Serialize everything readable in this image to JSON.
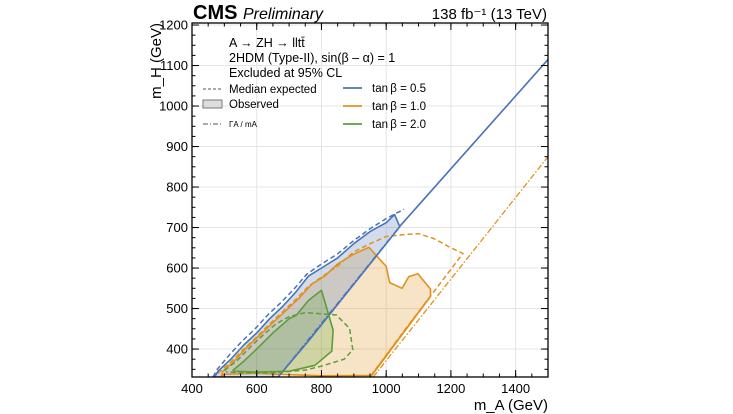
{
  "header": {
    "experiment": "CMS",
    "status": "Preliminary",
    "lumi": "138 fb⁻¹ (13 TeV)"
  },
  "annotations": [
    "A → ZH → lltt̄",
    "2HDM (Type-II), sin(β – α) = 1",
    "Excluded at 95% CL"
  ],
  "legend": {
    "styles": [
      {
        "label": "Median expected",
        "kind": "dashed"
      },
      {
        "label": "Observed",
        "kind": "filled"
      },
      {
        "label": "ΓA / mA",
        "kind": "dashdot"
      }
    ],
    "series": [
      {
        "label": "tan β = 0.5",
        "color": "#4a74b8"
      },
      {
        "label": "tan β = 1.0",
        "color": "#e0921e"
      },
      {
        "label": "tan β = 2.0",
        "color": "#5c9e3c"
      }
    ]
  },
  "chart_data": {
    "type": "line",
    "xlabel": "m_A (GeV)",
    "ylabel": "m_H (GeV)",
    "xlim": [
      400,
      1500
    ],
    "ylim": [
      331,
      1205
    ],
    "xticks": [
      400,
      600,
      800,
      1000,
      1200,
      1400
    ],
    "yticks": [
      400,
      500,
      600,
      700,
      800,
      900,
      1000,
      1100,
      1200
    ],
    "grid": true,
    "legend_placement": "top-left",
    "series": [
      {
        "name": "tan β = 0.5",
        "color": "#4a74b8",
        "observed": [
          [
            470,
            331
          ],
          [
            480,
            345
          ],
          [
            520,
            375
          ],
          [
            560,
            410
          ],
          [
            600,
            440
          ],
          [
            640,
            475
          ],
          [
            680,
            505
          ],
          [
            720,
            540
          ],
          [
            760,
            580
          ],
          [
            800,
            600
          ],
          [
            850,
            625
          ],
          [
            900,
            660
          ],
          [
            950,
            690
          ],
          [
            1000,
            712
          ],
          [
            1026,
            732
          ],
          [
            1042,
            702
          ],
          [
            945,
            605
          ],
          [
            850,
            510
          ],
          [
            760,
            420
          ],
          [
            666,
            331
          ]
        ],
        "expected": [
          [
            465,
            331
          ],
          [
            478,
            350
          ],
          [
            515,
            385
          ],
          [
            555,
            420
          ],
          [
            595,
            450
          ],
          [
            635,
            485
          ],
          [
            675,
            515
          ],
          [
            715,
            548
          ],
          [
            755,
            585
          ],
          [
            800,
            610
          ],
          [
            850,
            635
          ],
          [
            900,
            668
          ],
          [
            950,
            697
          ],
          [
            1000,
            722
          ],
          [
            1030,
            735
          ],
          [
            1055,
            745
          ]
        ],
        "width_line": [
          [
            666,
            331
          ],
          [
            1042,
            703
          ],
          [
            1500,
            1115
          ]
        ]
      },
      {
        "name": "tan β = 1.0",
        "color": "#e0921e",
        "observed": [
          [
            490,
            331
          ],
          [
            495,
            345
          ],
          [
            530,
            370
          ],
          [
            570,
            405
          ],
          [
            610,
            435
          ],
          [
            650,
            465
          ],
          [
            690,
            495
          ],
          [
            730,
            525
          ],
          [
            770,
            560
          ],
          [
            810,
            580
          ],
          [
            850,
            610
          ],
          [
            897,
            633
          ],
          [
            915,
            640
          ],
          [
            947,
            651
          ],
          [
            1000,
            604
          ],
          [
            1011,
            564
          ],
          [
            1049,
            550
          ],
          [
            1070,
            579
          ],
          [
            1098,
            586
          ],
          [
            1137,
            548
          ],
          [
            1137,
            530
          ],
          [
            954,
            335
          ],
          [
            800,
            334
          ],
          [
            600,
            340
          ],
          [
            500,
            338
          ]
        ],
        "expected": [
          [
            480,
            340
          ],
          [
            520,
            368
          ],
          [
            560,
            400
          ],
          [
            600,
            430
          ],
          [
            640,
            462
          ],
          [
            680,
            492
          ],
          [
            720,
            522
          ],
          [
            760,
            555
          ],
          [
            800,
            578
          ],
          [
            850,
            605
          ],
          [
            900,
            640
          ],
          [
            950,
            660
          ],
          [
            1000,
            678
          ],
          [
            1050,
            682
          ],
          [
            1100,
            685
          ],
          [
            1150,
            672
          ],
          [
            1195,
            652
          ],
          [
            1237,
            636
          ],
          [
            1060,
            450
          ],
          [
            950,
            331
          ]
        ],
        "width_line": [
          [
            960,
            331
          ],
          [
            1500,
            875
          ]
        ]
      },
      {
        "name": "tan β = 2.0",
        "color": "#5c9e3c",
        "observed": [
          [
            527,
            348
          ],
          [
            560,
            370
          ],
          [
            600,
            400
          ],
          [
            650,
            440
          ],
          [
            700,
            475
          ],
          [
            722,
            483
          ],
          [
            760,
            520
          ],
          [
            800,
            545
          ],
          [
            836,
            447
          ],
          [
            832,
            395
          ],
          [
            780,
            360
          ],
          [
            700,
            345
          ],
          [
            600,
            343
          ],
          [
            530,
            345
          ]
        ],
        "expected": [
          [
            500,
            347
          ],
          [
            540,
            372
          ],
          [
            580,
            405
          ],
          [
            620,
            435
          ],
          [
            660,
            462
          ],
          [
            700,
            480
          ],
          [
            750,
            490
          ],
          [
            846,
            484
          ],
          [
            887,
            451
          ],
          [
            897,
            398
          ],
          [
            870,
            375
          ],
          [
            800,
            358
          ],
          [
            750,
            348
          ],
          [
            650,
            341
          ],
          [
            560,
            341
          ],
          [
            505,
            344
          ]
        ]
      }
    ]
  }
}
